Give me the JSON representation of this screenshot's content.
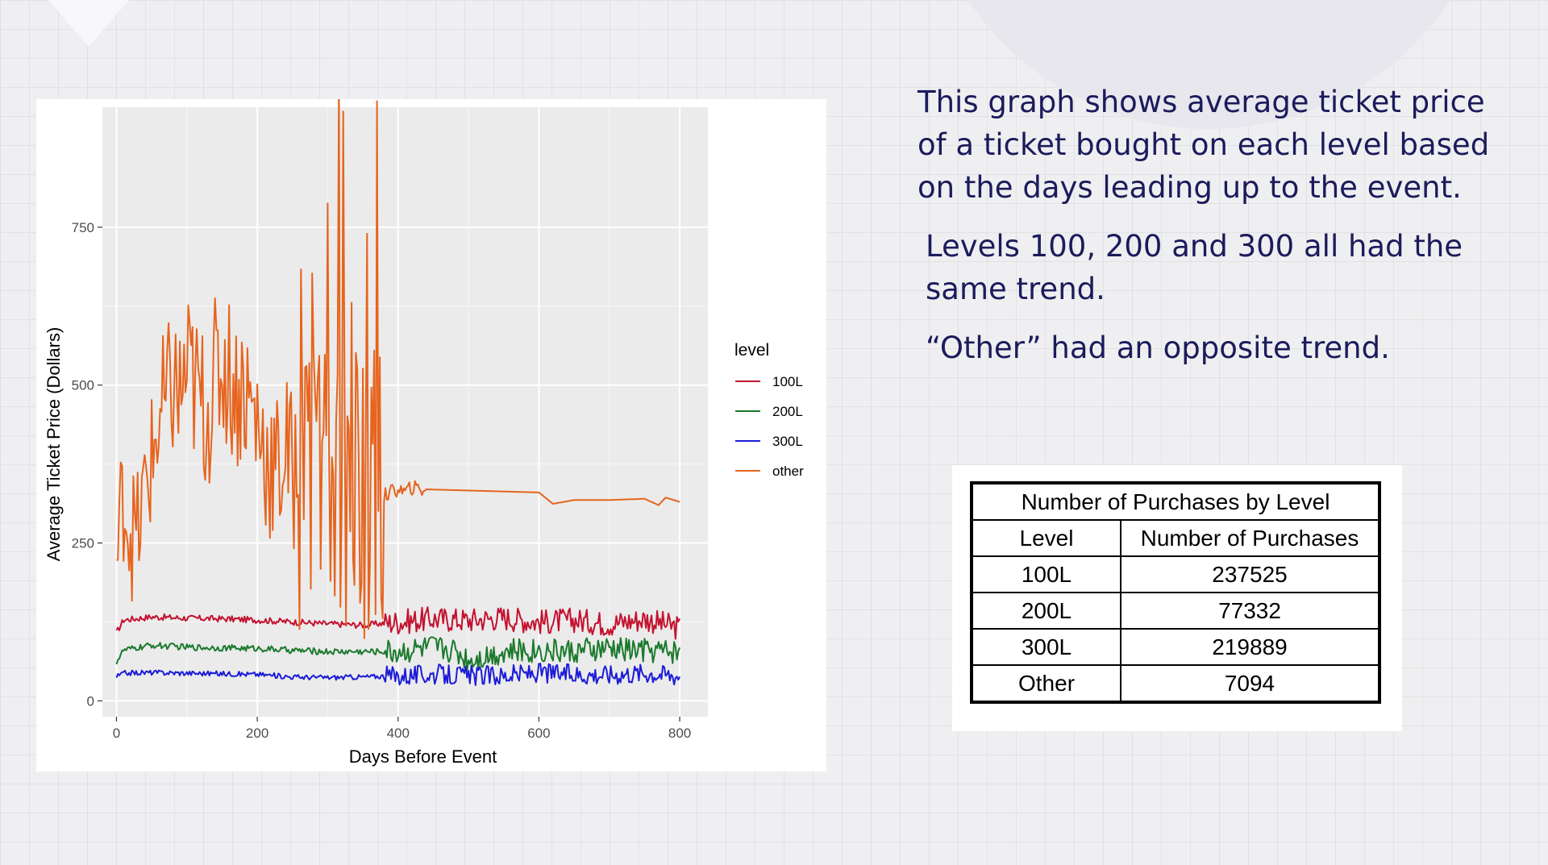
{
  "description": {
    "paragraphs": [
      "This graph shows average ticket price of a ticket bought on each level based on the days leading up to the event.",
      "Levels 100, 200 and 300 all had the same trend.",
      "“Other” had an opposite trend."
    ]
  },
  "table": {
    "title": "Number of Purchases by Level",
    "headers": [
      "Level",
      "Number of Purchases"
    ],
    "rows": [
      {
        "level": "100L",
        "count": "237525"
      },
      {
        "level": "200L",
        "count": "77332"
      },
      {
        "level": "300L",
        "count": "219889"
      },
      {
        "level": "Other",
        "count": "7094"
      }
    ]
  },
  "chart_data": {
    "type": "line",
    "xlabel": "Days Before Event",
    "ylabel": "Average Ticket Price (Dollars)",
    "xlim": [
      -20,
      840
    ],
    "ylim": [
      -25,
      940
    ],
    "xticks": [
      0,
      200,
      400,
      600,
      800
    ],
    "yticks": [
      0,
      250,
      500,
      750
    ],
    "grid": true,
    "legend": {
      "title": "level",
      "position": "right"
    },
    "series": [
      {
        "name": "100L",
        "color": "#c4122f",
        "x": [
          0,
          10,
          50,
          100,
          150,
          200,
          250,
          300,
          350,
          400,
          450,
          500,
          550,
          600,
          650,
          700,
          750,
          800
        ],
        "values": [
          108,
          128,
          133,
          131,
          130,
          128,
          125,
          122,
          120,
          125,
          130,
          128,
          132,
          125,
          128,
          122,
          130,
          115
        ]
      },
      {
        "name": "200L",
        "color": "#1a7a2c",
        "x": [
          0,
          10,
          50,
          100,
          150,
          200,
          250,
          300,
          350,
          400,
          450,
          480,
          500,
          550,
          600,
          650,
          700,
          750,
          800
        ],
        "values": [
          62,
          80,
          88,
          85,
          84,
          83,
          80,
          78,
          78,
          78,
          85,
          80,
          65,
          78,
          80,
          78,
          82,
          80,
          78
        ]
      },
      {
        "name": "300L",
        "color": "#1c1cd8",
        "x": [
          0,
          10,
          50,
          100,
          150,
          200,
          250,
          300,
          350,
          400,
          450,
          500,
          550,
          600,
          650,
          700,
          750,
          800
        ],
        "values": [
          38,
          44,
          45,
          44,
          43,
          42,
          38,
          37,
          38,
          40,
          42,
          40,
          40,
          45,
          42,
          42,
          45,
          40
        ]
      },
      {
        "name": "other",
        "color": "#e6641e",
        "x": [
          0,
          5,
          10,
          20,
          30,
          40,
          50,
          60,
          70,
          80,
          90,
          100,
          110,
          120,
          130,
          140,
          150,
          160,
          170,
          180,
          190,
          200,
          210,
          220,
          230,
          240,
          250,
          260,
          270,
          280,
          290,
          300,
          310,
          320,
          330,
          340,
          350,
          360,
          370,
          380,
          390,
          400,
          410,
          420,
          430,
          440,
          600,
          620,
          650,
          700,
          750,
          770,
          780,
          800
        ],
        "values": [
          210,
          280,
          330,
          270,
          260,
          330,
          380,
          440,
          460,
          500,
          480,
          520,
          500,
          470,
          460,
          510,
          530,
          520,
          490,
          500,
          470,
          440,
          400,
          370,
          360,
          400,
          360,
          360,
          380,
          340,
          350,
          360,
          340,
          350,
          360,
          350,
          340,
          320,
          330,
          325,
          330,
          335,
          330,
          338,
          335,
          335,
          330,
          312,
          318,
          318,
          320,
          310,
          322,
          315
        ]
      }
    ]
  }
}
